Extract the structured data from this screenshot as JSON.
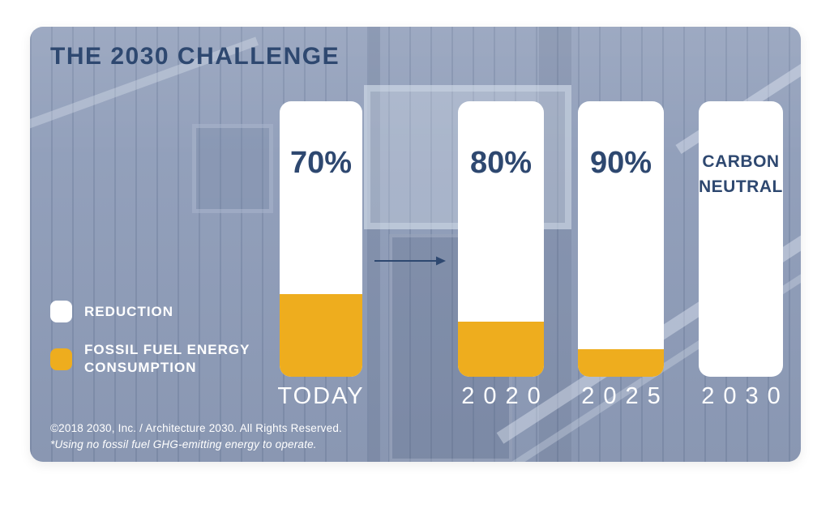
{
  "card": {
    "colors": {
      "navy": "#2E4870",
      "gold": "#EEAD1E",
      "overlay": "#8F9DB9",
      "bar_background": "#FFFFFF",
      "text_on_photo": "#FFFFFF"
    }
  },
  "chart_data": {
    "type": "bar",
    "title": "THE 2030 CHALLENGE",
    "categories": [
      "TODAY",
      "2020",
      "2025",
      "2030"
    ],
    "series": [
      {
        "name": "REDUCTION",
        "color": "#FFFFFF",
        "values": [
          70,
          80,
          90,
          100
        ]
      },
      {
        "name": "FOSSIL FUEL ENERGY CONSUMPTION",
        "color": "#EEAD1E",
        "values": [
          30,
          20,
          10,
          0
        ]
      }
    ],
    "bars": [
      {
        "category": "TODAY",
        "value_label": "70%",
        "reduction_pct": 70,
        "consumption_pct": 30
      },
      {
        "category": "2020",
        "value_label": "80%",
        "reduction_pct": 80,
        "consumption_pct": 20
      },
      {
        "category": "2025",
        "value_label": "90%",
        "reduction_pct": 90,
        "consumption_pct": 10
      },
      {
        "category": "2030",
        "value_label": "CARBON NEUTRAL*",
        "value_label_line1": "CARBON",
        "value_label_line2": "NEUTRAL",
        "value_label_note": "*",
        "reduction_pct": 100,
        "consumption_pct": 0
      }
    ],
    "ylim": [
      0,
      100
    ],
    "grid": false,
    "legend_position": "middle-left",
    "annotations": [
      "arrow pointing right between TODAY and 2020 bars"
    ]
  },
  "legend": {
    "items": [
      {
        "label": "REDUCTION",
        "color": "#FFFFFF"
      },
      {
        "label_line1": "FOSSIL FUEL ENERGY",
        "label_line2": "CONSUMPTION",
        "color": "#EEAD1E"
      }
    ]
  },
  "footer": {
    "line1": "©2018  2030, Inc. / Architecture 2030. All Rights Reserved.",
    "line2": "*Using no fossil fuel GHG-emitting energy to operate."
  }
}
